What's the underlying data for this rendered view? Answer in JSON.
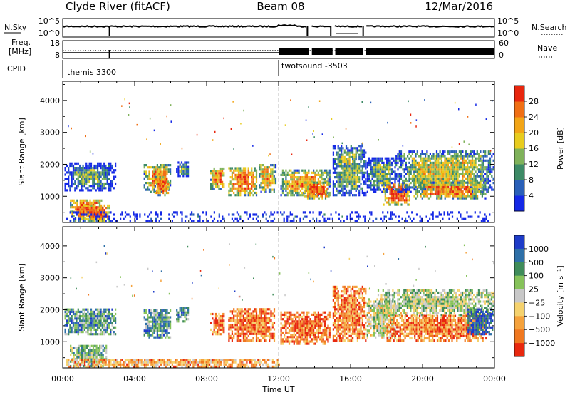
{
  "header": {
    "station": "Clyde River (fitACF)",
    "beam": "Beam 08",
    "date": "12/Mar/2016"
  },
  "panel_labels": {
    "nsky": "N.Sky",
    "nsky_ticks": [
      "10^5",
      "10^0"
    ],
    "nsearch": "N.Search",
    "nsearch_ticks": [
      "10^5",
      "10^0"
    ],
    "freq": "Freq.",
    "freq_unit": "[MHz]",
    "freq_ticks": [
      "18",
      "8"
    ],
    "nave": "Nave",
    "nave_ticks": [
      "60",
      "0"
    ],
    "cpid": "CPID"
  },
  "cpid_segments": [
    {
      "name": "themis 3300",
      "start_hour": 0
    },
    {
      "name": "twofsound -3503",
      "start_hour": 12
    }
  ],
  "x_axis": {
    "label": "Time UT",
    "ticks": [
      "00:00",
      "04:00",
      "08:00",
      "12:00",
      "16:00",
      "20:00",
      "00:00"
    ]
  },
  "chart_data": [
    {
      "type": "heatmap",
      "name": "power",
      "ylabel": "Slant Range [km]",
      "yticks": [
        "1000",
        "2000",
        "3000",
        "4000"
      ],
      "ylim": [
        180,
        4600
      ],
      "xlim": [
        0,
        24
      ],
      "colorbar_label": "Power [dB]",
      "colorbar_ticks": [
        "4",
        "8",
        "12",
        "16",
        "20",
        "24",
        "28"
      ],
      "colorbar_colors": [
        "#1428e6",
        "#2a60b8",
        "#3d8a66",
        "#7fb25a",
        "#e8cc1e",
        "#f2a516",
        "#f06f14",
        "#e8260e"
      ],
      "patches": [
        {
          "t0": 0.1,
          "t1": 2.9,
          "r0": 1150,
          "r1": 2000,
          "level": 0.35
        },
        {
          "t0": 0.4,
          "t1": 2.2,
          "r0": 200,
          "r1": 900,
          "level": 0.8
        },
        {
          "t0": 1.2,
          "t1": 2.6,
          "r0": 180,
          "r1": 700,
          "level": 0.95
        },
        {
          "t0": 4.5,
          "t1": 6.0,
          "r0": 1100,
          "r1": 2000,
          "level": 0.7
        },
        {
          "t0": 5.1,
          "t1": 5.9,
          "r0": 1000,
          "r1": 1600,
          "level": 0.85
        },
        {
          "t0": 6.3,
          "t1": 7.0,
          "r0": 1600,
          "r1": 2050,
          "level": 0.4
        },
        {
          "t0": 8.2,
          "t1": 9.0,
          "r0": 1200,
          "r1": 1900,
          "level": 0.75
        },
        {
          "t0": 9.2,
          "t1": 10.8,
          "r0": 1000,
          "r1": 1900,
          "level": 0.8
        },
        {
          "t0": 10.9,
          "t1": 11.8,
          "r0": 1100,
          "r1": 2000,
          "level": 0.7
        },
        {
          "t0": 12.1,
          "t1": 14.8,
          "r0": 1000,
          "r1": 1800,
          "level": 0.7
        },
        {
          "t0": 13.4,
          "t1": 14.8,
          "r0": 900,
          "r1": 1400,
          "level": 0.85
        },
        {
          "t0": 15.0,
          "t1": 16.8,
          "r0": 1000,
          "r1": 2600,
          "level": 0.45
        },
        {
          "t0": 16.9,
          "t1": 18.5,
          "r0": 1100,
          "r1": 2200,
          "level": 0.4
        },
        {
          "t0": 17.8,
          "t1": 19.3,
          "r0": 700,
          "r1": 1400,
          "level": 0.9
        },
        {
          "t0": 18.5,
          "t1": 23.9,
          "r0": 1100,
          "r1": 2400,
          "level": 0.55
        },
        {
          "t0": 19.5,
          "t1": 23.5,
          "r0": 900,
          "r1": 1400,
          "level": 0.75
        },
        {
          "t0": 0.2,
          "t1": 23.8,
          "r0": 180,
          "r1": 500,
          "level": 0.05
        }
      ]
    },
    {
      "type": "heatmap",
      "name": "velocity",
      "ylabel": "Slant Range [km]",
      "yticks": [
        "1000",
        "2000",
        "3000",
        "4000"
      ],
      "ylim": [
        180,
        4600
      ],
      "xlim": [
        0,
        24
      ],
      "colorbar_label": "Velocity [m s⁻¹]",
      "colorbar_ticks": [
        "1000",
        "500",
        "100",
        "25",
        "−25",
        "−100",
        "−500",
        "−1000"
      ],
      "colorbar_colors": [
        "#1e3cc8",
        "#2e70a8",
        "#3f8c5a",
        "#86c25a",
        "#c8c8c8",
        "#f5d26e",
        "#f5a23c",
        "#f07820",
        "#e8280e"
      ],
      "patches": [
        {
          "t0": 0.1,
          "t1": 2.9,
          "r0": 1200,
          "r1": 2000,
          "level": 0.3
        },
        {
          "t0": 0.4,
          "t1": 2.4,
          "r0": 200,
          "r1": 900,
          "level": 0.4
        },
        {
          "t0": 4.5,
          "t1": 6.0,
          "r0": 1100,
          "r1": 2000,
          "level": 0.3
        },
        {
          "t0": 6.3,
          "t1": 7.0,
          "r0": 1600,
          "r1": 2050,
          "level": 0.3
        },
        {
          "t0": 8.2,
          "t1": 9.0,
          "r0": 1200,
          "r1": 1900,
          "level": 0.8
        },
        {
          "t0": 9.2,
          "t1": 11.8,
          "r0": 1000,
          "r1": 2000,
          "level": 0.82
        },
        {
          "t0": 12.1,
          "t1": 14.8,
          "r0": 900,
          "r1": 1900,
          "level": 0.85
        },
        {
          "t0": 15.0,
          "t1": 16.8,
          "r0": 1000,
          "r1": 2700,
          "level": 0.8
        },
        {
          "t0": 16.9,
          "t1": 18.5,
          "r0": 1100,
          "r1": 2300,
          "level": 0.5
        },
        {
          "t0": 17.5,
          "t1": 23.9,
          "r0": 1800,
          "r1": 2600,
          "level": 0.45
        },
        {
          "t0": 18.0,
          "t1": 23.5,
          "r0": 1000,
          "r1": 1800,
          "level": 0.8
        },
        {
          "t0": 22.5,
          "t1": 23.9,
          "r0": 1200,
          "r1": 2000,
          "level": 0.1
        },
        {
          "t0": 0.2,
          "t1": 12.0,
          "r0": 180,
          "r1": 450,
          "level": 0.7
        }
      ]
    }
  ],
  "summary_series": {
    "nsky_hours": [
      0,
      2.6,
      13.6,
      14.9,
      16.7,
      24
    ],
    "freq_low_until": 12,
    "freq_low_value": 10.5,
    "freq_high_value": 11.5,
    "nave_gaps_hours": [
      13.7,
      15.0,
      16.7
    ]
  }
}
